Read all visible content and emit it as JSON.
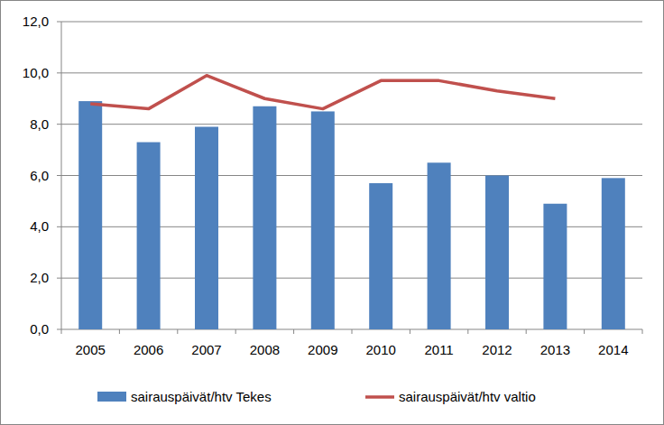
{
  "chart_data": {
    "type": "bar",
    "categories": [
      "2005",
      "2006",
      "2007",
      "2008",
      "2009",
      "2010",
      "2011",
      "2012",
      "2013",
      "2014"
    ],
    "series": [
      {
        "name": "sairauspäivät/htv Tekes",
        "type": "bar",
        "color": "#4f81bd",
        "values": [
          8.9,
          7.3,
          7.9,
          8.7,
          8.5,
          5.7,
          6.5,
          6.0,
          4.9,
          5.9
        ]
      },
      {
        "name": "sairauspäivät/htv valtio",
        "type": "line",
        "color": "#c0504d",
        "values": [
          8.8,
          8.6,
          9.9,
          9.0,
          8.6,
          9.7,
          9.7,
          9.3,
          9.0,
          null
        ]
      }
    ],
    "ylim": [
      0,
      12
    ],
    "yticks": [
      {
        "value": 0,
        "label": "0,0"
      },
      {
        "value": 2,
        "label": "2,0"
      },
      {
        "value": 4,
        "label": "4,0"
      },
      {
        "value": 6,
        "label": "6,0"
      },
      {
        "value": 8,
        "label": "8,0"
      },
      {
        "value": 10,
        "label": "10,0"
      },
      {
        "value": 12,
        "label": "12,0"
      }
    ],
    "grid": true,
    "legend": "bottom"
  }
}
